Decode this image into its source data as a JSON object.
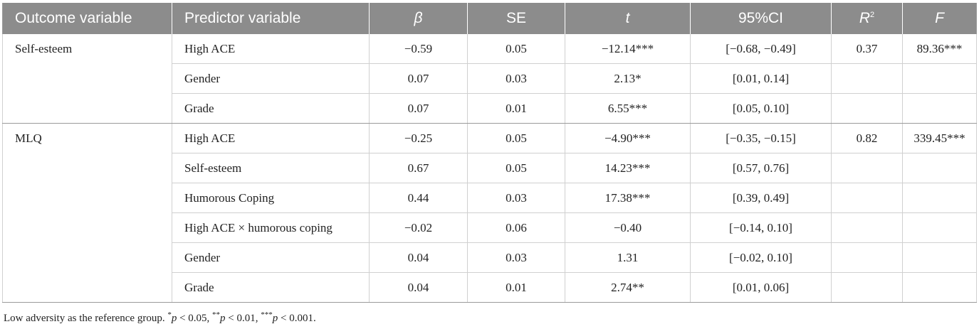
{
  "table": {
    "headers": [
      "Outcome variable",
      "Predictor variable",
      "β",
      "SE",
      "t",
      "95%CI",
      "R",
      "2",
      "F"
    ],
    "groups": [
      {
        "outcome": "Self-esteem",
        "r2": "0.37",
        "f": "89.36***",
        "rows": [
          {
            "predictor": "High ACE",
            "beta": "−0.59",
            "se": "0.05",
            "t": "−12.14***",
            "ci": "[−0.68, −0.49]"
          },
          {
            "predictor": "Gender",
            "beta": "0.07",
            "se": "0.03",
            "t": "2.13*",
            "ci": "[0.01, 0.14]"
          },
          {
            "predictor": "Grade",
            "beta": "0.07",
            "se": "0.01",
            "t": "6.55***",
            "ci": "[0.05, 0.10]"
          }
        ]
      },
      {
        "outcome": "MLQ",
        "r2": "0.82",
        "f": "339.45***",
        "rows": [
          {
            "predictor": "High ACE",
            "beta": "−0.25",
            "se": "0.05",
            "t": "−4.90***",
            "ci": "[−0.35, −0.15]"
          },
          {
            "predictor": "Self-esteem",
            "beta": "0.67",
            "se": "0.05",
            "t": "14.23***",
            "ci": "[0.57, 0.76]"
          },
          {
            "predictor": "Humorous Coping",
            "beta": "0.44",
            "se": "0.03",
            "t": "17.38***",
            "ci": "[0.39, 0.49]"
          },
          {
            "predictor": "High ACE × humorous coping",
            "beta": "−0.02",
            "se": "0.06",
            "t": "−0.40",
            "ci": "[−0.14, 0.10]"
          },
          {
            "predictor": "Gender",
            "beta": "0.04",
            "se": "0.03",
            "t": "1.31",
            "ci": "[−0.02, 0.10]"
          },
          {
            "predictor": "Grade",
            "beta": "0.04",
            "se": "0.01",
            "t": "2.74**",
            "ci": "[0.01, 0.06]"
          }
        ]
      }
    ]
  },
  "footnote": {
    "lead": "Low adversity as the reference group. ",
    "s1": "*",
    "p1": "p",
    "t1": " < 0.05, ",
    "s2": "**",
    "p2": "p",
    "t2": " < 0.01, ",
    "s3": "***",
    "p3": "p",
    "t3": " < 0.001."
  },
  "colors": {
    "header_bg": "#8c8c8c",
    "header_text": "#ffffff",
    "border": "#d0d0d0"
  }
}
